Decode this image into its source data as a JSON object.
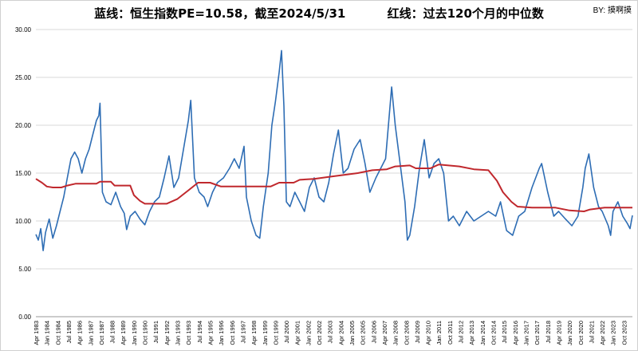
{
  "title": "蓝线：恒生指数PE=10.58，截至2024/5/31          红线：过去120个月的中位数",
  "credit": "BY: 摸啊摸",
  "chart_data": {
    "type": "line",
    "title": "蓝线：恒生指数PE=10.58，截至2024/5/31          红线：过去120个月的中位数",
    "xlabel": "",
    "ylabel": "",
    "ylim": [
      0,
      30
    ],
    "yticks": [
      "0.00",
      "5.00",
      "10.00",
      "15.00",
      "20.00",
      "25.00",
      "30.00"
    ],
    "xlim": [
      "1983-04",
      "2024-05"
    ],
    "xticks": [
      "Apr 1983",
      "Jan 1984",
      "Oct 1984",
      "Jul 1985",
      "Apr 1986",
      "Jan 1987",
      "Oct 1987",
      "Jul 1988",
      "Apr 1989",
      "Jan 1990",
      "Oct 1990",
      "Jul 1991",
      "Apr 1992",
      "Jan 1993",
      "Oct 1993",
      "Jul 1994",
      "Apr 1995",
      "Jan 1996",
      "Oct 1996",
      "Jul 1997",
      "Apr 1998",
      "Jan 1999",
      "Oct 1999",
      "Jul 2000",
      "Apr 2001",
      "Jan 2002",
      "Oct 2002",
      "Jul 2003",
      "Apr 2004",
      "Jan 2005",
      "Oct 2005",
      "Jul 2006",
      "Apr 2007",
      "Jan 2008",
      "Oct 2008",
      "Jul 2009",
      "Apr 2010",
      "Jan 2011",
      "Oct 2011",
      "Jul 2012",
      "Apr 2013",
      "Jan 2014",
      "Oct 2014",
      "Jul 2015",
      "Apr 2016",
      "Jan 2017",
      "Oct 2017",
      "Jul 2018",
      "Apr 2019",
      "Jan 2020",
      "Oct 2020",
      "Jul 2021",
      "Apr 2022",
      "Jan 2023",
      "Oct 2023"
    ],
    "grid": "horizontal",
    "legend": "none",
    "series": [
      {
        "color": "#2e6db4",
        "points": [
          [
            "1983-04",
            8.6
          ],
          [
            "1983-06",
            8.0
          ],
          [
            "1983-08",
            9.2
          ],
          [
            "1983-10",
            6.9
          ],
          [
            "1983-12",
            8.8
          ],
          [
            "1984-03",
            10.2
          ],
          [
            "1984-06",
            8.2
          ],
          [
            "1984-09",
            9.5
          ],
          [
            "1984-12",
            11.0
          ],
          [
            "1985-03",
            12.5
          ],
          [
            "1985-06",
            14.5
          ],
          [
            "1985-09",
            16.5
          ],
          [
            "1985-12",
            17.2
          ],
          [
            "1986-03",
            16.5
          ],
          [
            "1986-06",
            15.0
          ],
          [
            "1986-09",
            16.5
          ],
          [
            "1986-12",
            17.5
          ],
          [
            "1987-03",
            19.0
          ],
          [
            "1987-06",
            20.5
          ],
          [
            "1987-08",
            21.0
          ],
          [
            "1987-09",
            22.3
          ],
          [
            "1987-11",
            13.0
          ],
          [
            "1988-02",
            12.0
          ],
          [
            "1988-06",
            11.7
          ],
          [
            "1988-10",
            13.0
          ],
          [
            "1989-02",
            11.5
          ],
          [
            "1989-05",
            10.8
          ],
          [
            "1989-07",
            9.1
          ],
          [
            "1989-10",
            10.5
          ],
          [
            "1990-02",
            11.0
          ],
          [
            "1990-06",
            10.2
          ],
          [
            "1990-10",
            9.6
          ],
          [
            "1991-02",
            11.0
          ],
          [
            "1991-06",
            12.0
          ],
          [
            "1991-10",
            12.5
          ],
          [
            "1992-02",
            14.5
          ],
          [
            "1992-06",
            16.8
          ],
          [
            "1992-10",
            13.5
          ],
          [
            "1993-02",
            14.5
          ],
          [
            "1993-06",
            17.5
          ],
          [
            "1993-10",
            20.5
          ],
          [
            "1993-12",
            22.6
          ],
          [
            "1994-03",
            14.5
          ],
          [
            "1994-07",
            13.0
          ],
          [
            "1994-11",
            12.5
          ],
          [
            "1995-02",
            11.5
          ],
          [
            "1995-06",
            13.0
          ],
          [
            "1995-10",
            14.0
          ],
          [
            "1996-03",
            14.5
          ],
          [
            "1996-08",
            15.5
          ],
          [
            "1996-12",
            16.5
          ],
          [
            "1997-04",
            15.5
          ],
          [
            "1997-08",
            17.8
          ],
          [
            "1997-10",
            12.5
          ],
          [
            "1998-02",
            10.0
          ],
          [
            "1998-06",
            8.5
          ],
          [
            "1998-09",
            8.2
          ],
          [
            "1998-12",
            11.5
          ],
          [
            "1999-04",
            15.0
          ],
          [
            "1999-07",
            20.0
          ],
          [
            "1999-10",
            22.5
          ],
          [
            "2000-01",
            25.5
          ],
          [
            "2000-03",
            27.8
          ],
          [
            "2000-05",
            22.0
          ],
          [
            "2000-07",
            12.0
          ],
          [
            "2000-10",
            11.5
          ],
          [
            "2001-02",
            13.0
          ],
          [
            "2001-06",
            12.0
          ],
          [
            "2001-10",
            11.0
          ],
          [
            "2002-02",
            13.5
          ],
          [
            "2002-06",
            14.5
          ],
          [
            "2002-10",
            12.5
          ],
          [
            "2003-02",
            12.0
          ],
          [
            "2003-06",
            14.0
          ],
          [
            "2003-10",
            17.0
          ],
          [
            "2004-02",
            19.5
          ],
          [
            "2004-06",
            15.0
          ],
          [
            "2004-10",
            15.5
          ],
          [
            "2005-03",
            17.5
          ],
          [
            "2005-08",
            18.5
          ],
          [
            "2005-12",
            16.0
          ],
          [
            "2006-04",
            13.0
          ],
          [
            "2006-09",
            14.5
          ],
          [
            "2007-01",
            15.5
          ],
          [
            "2007-05",
            16.5
          ],
          [
            "2007-10",
            24.0
          ],
          [
            "2008-01",
            20.0
          ],
          [
            "2008-05",
            16.0
          ],
          [
            "2008-09",
            12.0
          ],
          [
            "2008-11",
            8.0
          ],
          [
            "2009-01",
            8.5
          ],
          [
            "2009-05",
            11.5
          ],
          [
            "2009-09",
            15.5
          ],
          [
            "2010-01",
            18.5
          ],
          [
            "2010-05",
            14.5
          ],
          [
            "2010-09",
            16.0
          ],
          [
            "2011-01",
            16.5
          ],
          [
            "2011-05",
            15.0
          ],
          [
            "2011-09",
            10.0
          ],
          [
            "2012-01",
            10.5
          ],
          [
            "2012-06",
            9.5
          ],
          [
            "2012-12",
            11.0
          ],
          [
            "2013-06",
            10.0
          ],
          [
            "2013-12",
            10.5
          ],
          [
            "2014-06",
            11.0
          ],
          [
            "2014-12",
            10.5
          ],
          [
            "2015-04",
            12.0
          ],
          [
            "2015-09",
            9.0
          ],
          [
            "2016-02",
            8.5
          ],
          [
            "2016-07",
            10.5
          ],
          [
            "2016-12",
            11.0
          ],
          [
            "2017-06",
            13.5
          ],
          [
            "2017-12",
            15.5
          ],
          [
            "2018-02",
            16.0
          ],
          [
            "2018-07",
            13.0
          ],
          [
            "2018-12",
            10.5
          ],
          [
            "2019-04",
            11.0
          ],
          [
            "2019-09",
            10.3
          ],
          [
            "2020-03",
            9.5
          ],
          [
            "2020-08",
            10.5
          ],
          [
            "2020-12",
            13.5
          ],
          [
            "2021-02",
            15.5
          ],
          [
            "2021-05",
            17.0
          ],
          [
            "2021-09",
            13.5
          ],
          [
            "2022-01",
            11.5
          ],
          [
            "2022-04",
            11.0
          ],
          [
            "2022-09",
            9.5
          ],
          [
            "2022-11",
            8.5
          ],
          [
            "2023-01",
            11.0
          ],
          [
            "2023-05",
            12.0
          ],
          [
            "2023-09",
            10.5
          ],
          [
            "2024-01",
            9.7
          ],
          [
            "2024-03",
            9.2
          ],
          [
            "2024-05",
            10.58
          ]
        ]
      },
      {
        "color": "#c0282d",
        "points": [
          [
            "1983-04",
            14.4
          ],
          [
            "1983-09",
            14.0
          ],
          [
            "1984-01",
            13.6
          ],
          [
            "1984-06",
            13.5
          ],
          [
            "1985-01",
            13.5
          ],
          [
            "1985-06",
            13.7
          ],
          [
            "1986-01",
            13.9
          ],
          [
            "1987-06",
            13.9
          ],
          [
            "1987-09",
            14.1
          ],
          [
            "1988-06",
            14.1
          ],
          [
            "1988-09",
            13.7
          ],
          [
            "1989-10",
            13.7
          ],
          [
            "1990-01",
            12.7
          ],
          [
            "1990-06",
            12.1
          ],
          [
            "1990-10",
            11.8
          ],
          [
            "1991-06",
            11.8
          ],
          [
            "1992-04",
            11.8
          ],
          [
            "1993-01",
            12.3
          ],
          [
            "1993-10",
            13.2
          ],
          [
            "1994-06",
            14.0
          ],
          [
            "1995-04",
            14.0
          ],
          [
            "1996-01",
            13.6
          ],
          [
            "1999-06",
            13.6
          ],
          [
            "2000-01",
            14.0
          ],
          [
            "2001-01",
            14.0
          ],
          [
            "2001-06",
            14.3
          ],
          [
            "2002-06",
            14.4
          ],
          [
            "2003-06",
            14.6
          ],
          [
            "2004-06",
            14.8
          ],
          [
            "2005-06",
            15.0
          ],
          [
            "2006-06",
            15.3
          ],
          [
            "2007-06",
            15.4
          ],
          [
            "2008-01",
            15.7
          ],
          [
            "2009-01",
            15.8
          ],
          [
            "2009-06",
            15.5
          ],
          [
            "2010-06",
            15.5
          ],
          [
            "2011-01",
            15.9
          ],
          [
            "2012-06",
            15.7
          ],
          [
            "2013-06",
            15.4
          ],
          [
            "2014-06",
            15.3
          ],
          [
            "2015-01",
            14.2
          ],
          [
            "2015-06",
            13.0
          ],
          [
            "2016-01",
            12.0
          ],
          [
            "2016-06",
            11.5
          ],
          [
            "2017-06",
            11.4
          ],
          [
            "2019-01",
            11.4
          ],
          [
            "2020-01",
            11.1
          ],
          [
            "2021-01",
            11.0
          ],
          [
            "2021-06",
            11.2
          ],
          [
            "2022-06",
            11.4
          ],
          [
            "2023-06",
            11.4
          ],
          [
            "2024-05",
            11.4
          ]
        ]
      }
    ]
  }
}
